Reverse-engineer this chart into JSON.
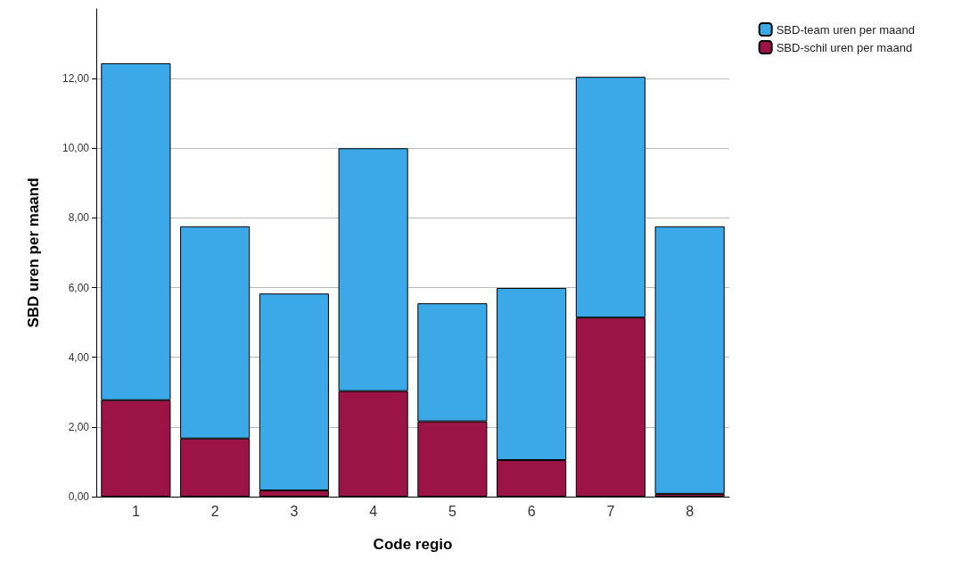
{
  "chart_data": {
    "type": "bar",
    "stacked": true,
    "xlabel": "Code regio",
    "ylabel": "SBD uren per maand",
    "categories": [
      "1",
      "2",
      "3",
      "4",
      "5",
      "6",
      "7",
      "8"
    ],
    "series": [
      {
        "name": "SBD-schil uren per maand",
        "color": "#9b1445",
        "values": [
          2.77,
          1.67,
          0.18,
          3.03,
          2.16,
          1.05,
          5.14,
          0.08
        ]
      },
      {
        "name": "SBD-team uren per maand",
        "color": "#3ba9e8",
        "values": [
          9.67,
          6.09,
          5.65,
          6.97,
          3.39,
          4.94,
          6.91,
          7.68
        ]
      }
    ],
    "ylim": [
      0,
      14
    ],
    "yticks": [
      {
        "value": 0,
        "label": "0,00"
      },
      {
        "value": 2,
        "label": "2,00"
      },
      {
        "value": 4,
        "label": "4,00"
      },
      {
        "value": 6,
        "label": "6,00"
      },
      {
        "value": 8,
        "label": "8,00"
      },
      {
        "value": 10,
        "label": "10,00"
      },
      {
        "value": 12,
        "label": "12,00"
      }
    ],
    "grid": "y",
    "legend": "top right"
  }
}
